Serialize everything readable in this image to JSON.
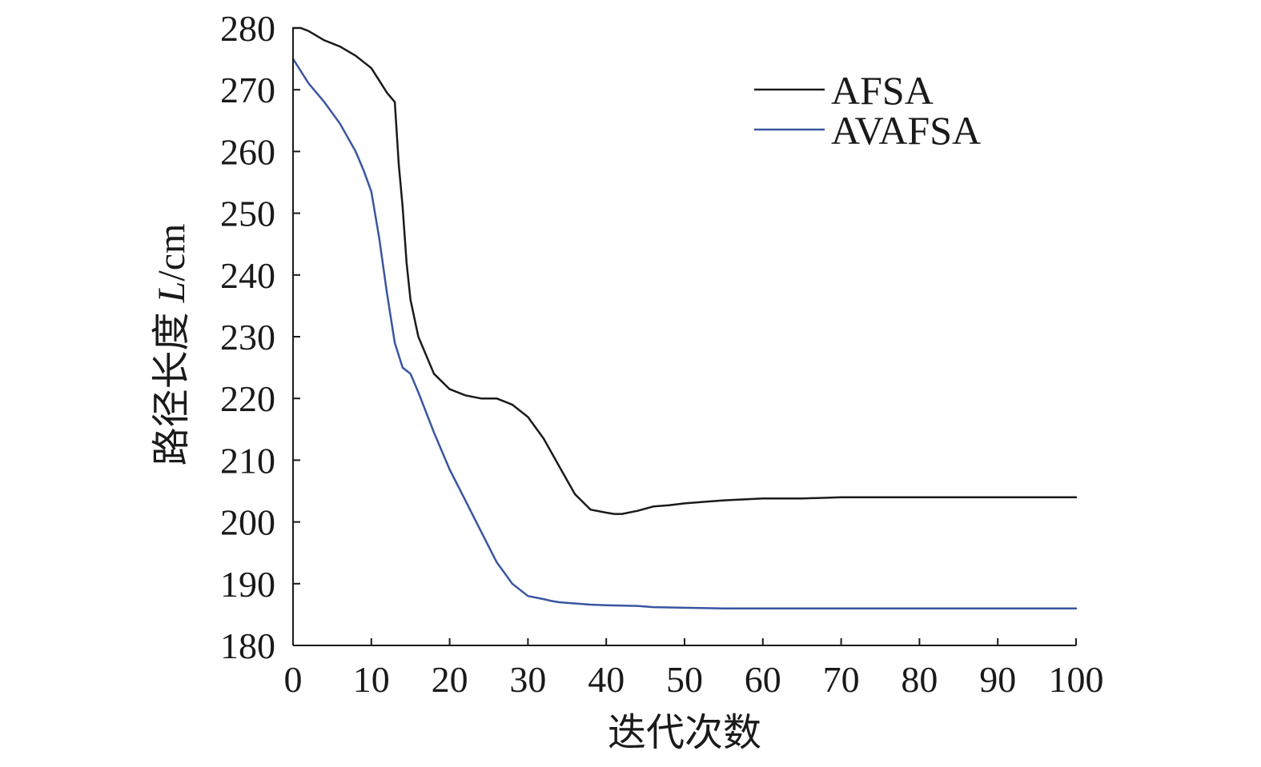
{
  "chart_data": {
    "type": "line",
    "xlabel": "迭代次数",
    "ylabel": {
      "prefix": "路径长度 ",
      "var": "L",
      "suffix": "/cm"
    },
    "xlim": [
      0,
      100
    ],
    "ylim": [
      180,
      280
    ],
    "xticks": [
      "0",
      "10",
      "20",
      "30",
      "40",
      "50",
      "60",
      "70",
      "80",
      "90",
      "100"
    ],
    "yticks": [
      "180",
      "190",
      "200",
      "210",
      "220",
      "230",
      "240",
      "250",
      "260",
      "270",
      "280"
    ],
    "grid": false,
    "legend_position": "top-right",
    "series": [
      {
        "name": "AFSA",
        "color": "#1a1a1a",
        "x": [
          0,
          1,
          2,
          4,
          6,
          8,
          10,
          11,
          12,
          13,
          13.5,
          14,
          14.5,
          15,
          16,
          18,
          20,
          22,
          24,
          26,
          28,
          30,
          32,
          34,
          36,
          38,
          40,
          41,
          42,
          44,
          46,
          48,
          50,
          55,
          60,
          65,
          70,
          75,
          80,
          85,
          90,
          95,
          100
        ],
        "y": [
          280,
          280,
          279.5,
          278,
          277,
          275.5,
          273.5,
          271.5,
          269.5,
          268,
          258,
          251,
          242,
          236,
          230,
          224,
          221.5,
          220.5,
          220,
          220,
          219,
          217,
          213.5,
          209,
          204.5,
          202,
          201.5,
          201.3,
          201.3,
          201.8,
          202.5,
          202.7,
          203,
          203.5,
          203.8,
          203.8,
          204,
          204,
          204,
          204,
          204,
          204,
          204
        ]
      },
      {
        "name": "AVAFSA",
        "color": "#3a55a0",
        "x": [
          0,
          1,
          2,
          4,
          6,
          8,
          9,
          10,
          11,
          12,
          13,
          14,
          15,
          16,
          18,
          20,
          22,
          24,
          26,
          28,
          30,
          32,
          33,
          34,
          36,
          38,
          40,
          44,
          46,
          50,
          55,
          60,
          65,
          70,
          75,
          80,
          85,
          90,
          95,
          100
        ],
        "y": [
          275,
          273,
          271,
          268,
          264.5,
          260,
          257,
          253.5,
          246,
          237,
          229,
          225,
          224,
          221,
          214.5,
          208.5,
          203.5,
          198.5,
          193.5,
          190,
          188,
          187.5,
          187.2,
          187,
          186.8,
          186.6,
          186.5,
          186.4,
          186.2,
          186.1,
          186,
          186,
          186,
          186,
          186,
          186,
          186,
          186,
          186,
          186
        ]
      }
    ]
  }
}
